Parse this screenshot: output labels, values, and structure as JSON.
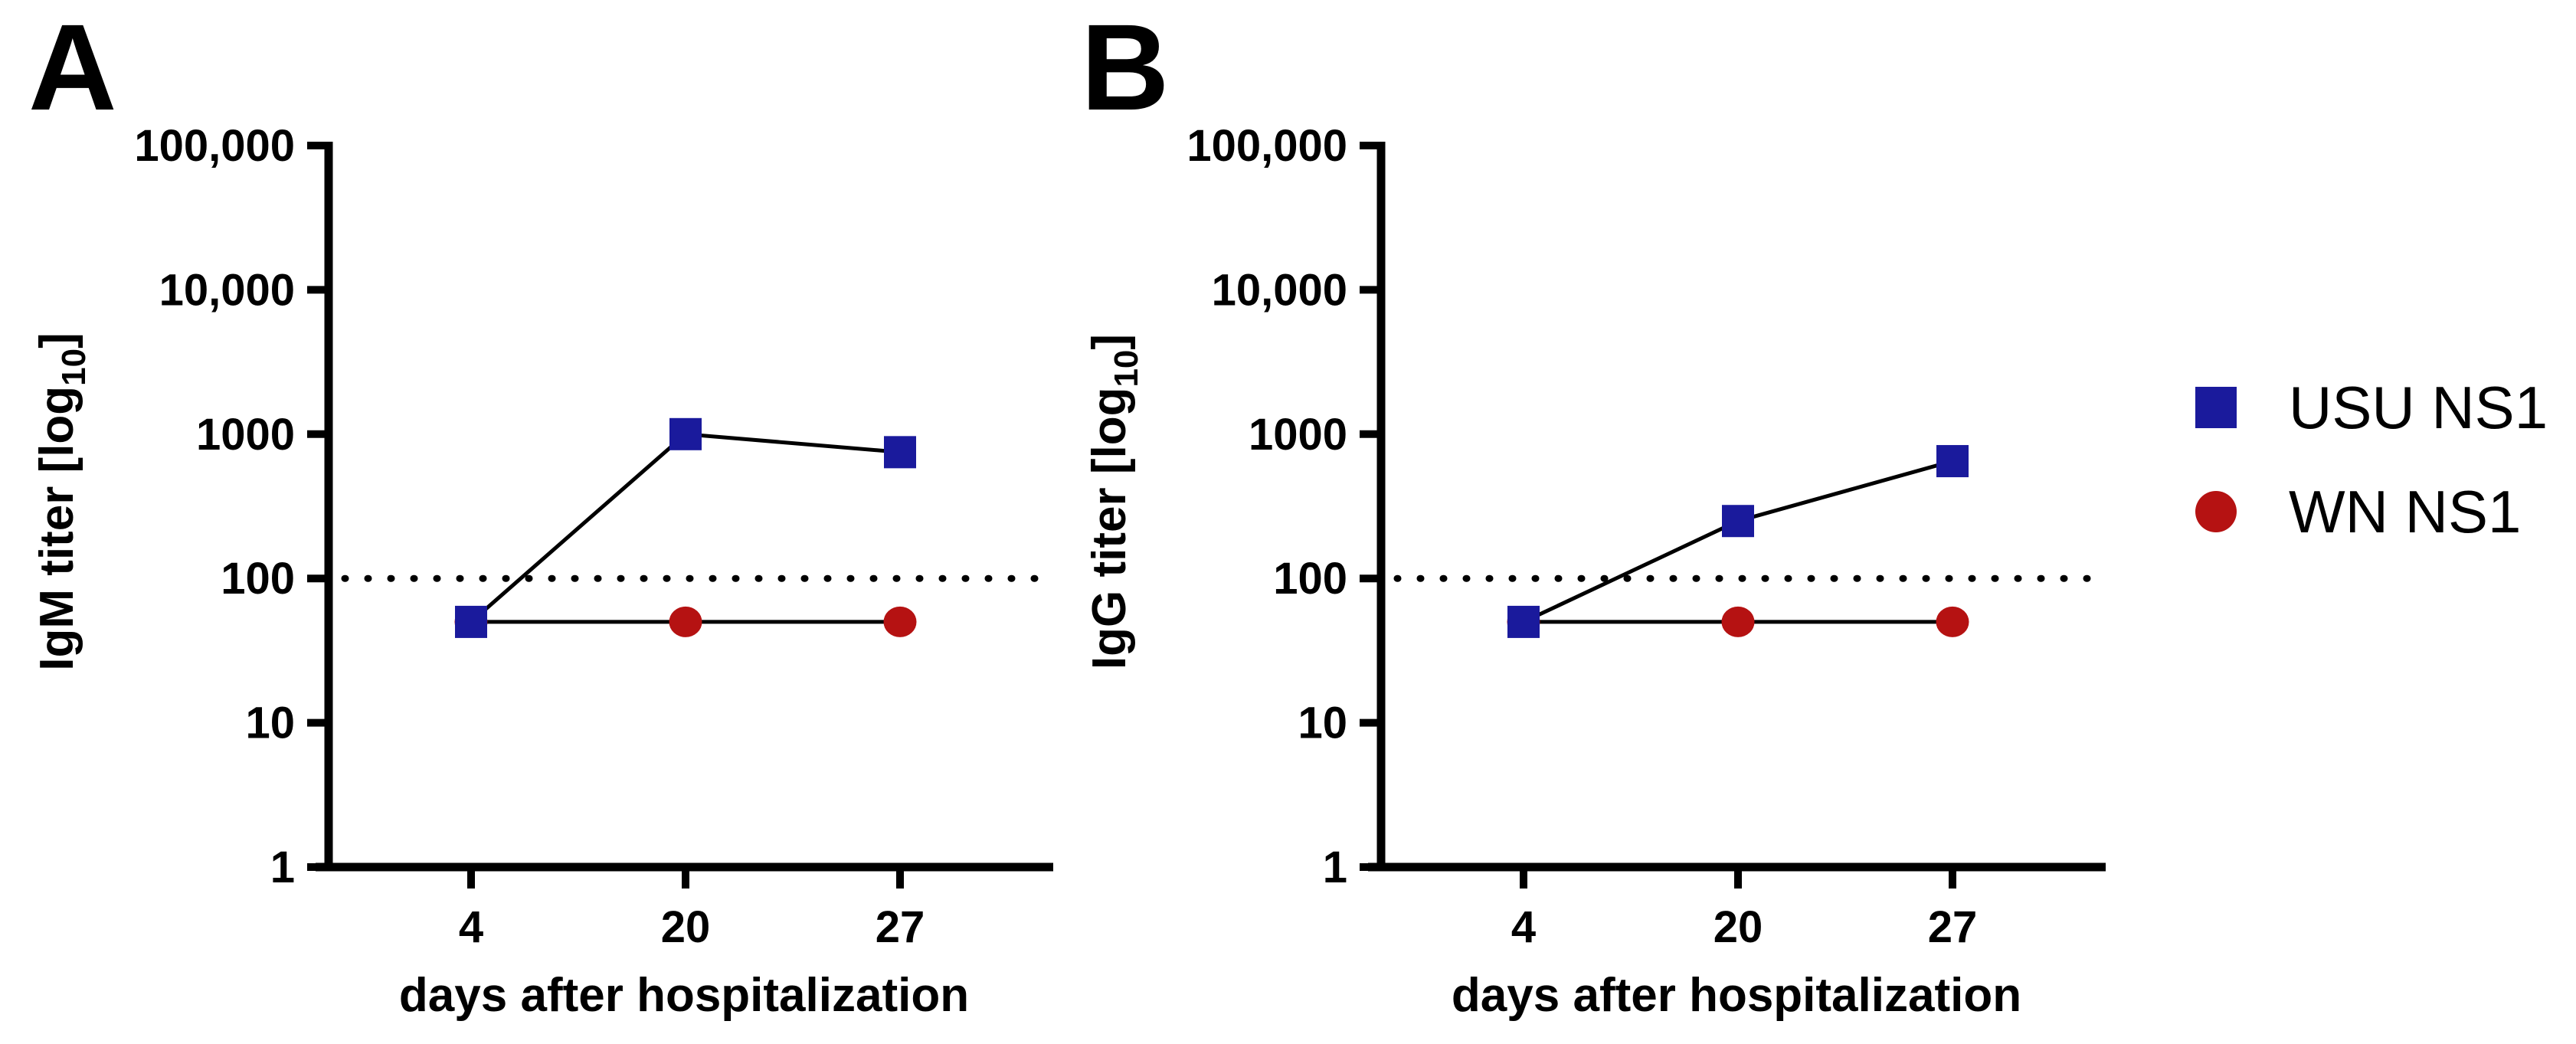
{
  "figure": {
    "background": "#ffffff",
    "axis_color": "#000000",
    "line_color": "#000000"
  },
  "chart_data": [
    {
      "panel_label": "A",
      "type": "line",
      "title": "",
      "xlabel": "days after hospitalization",
      "ylabel": "IgM titer [log10]",
      "ylabel_parts": {
        "prefix": "IgM titer [log",
        "sub": "10",
        "suffix": "]"
      },
      "x_tick_labels": [
        "4",
        "20",
        "27"
      ],
      "x_values": [
        4,
        20,
        27
      ],
      "yscale": "log10",
      "ylim": [
        1,
        100000
      ],
      "y_tick_values": [
        1,
        10,
        100,
        1000,
        10000,
        100000
      ],
      "y_tick_labels": [
        "1",
        "10",
        "100",
        "1000",
        "10,000",
        "100,000"
      ],
      "detection_limit_line": 100,
      "grid": false,
      "legend_position": "outside-right",
      "series": [
        {
          "name": "USU NS1",
          "marker": "square",
          "color": "#1a1a9c",
          "values": [
            50,
            1000,
            750
          ]
        },
        {
          "name": "WN NS1",
          "marker": "circle",
          "color": "#b51212",
          "values": [
            50,
            50,
            50
          ]
        }
      ]
    },
    {
      "panel_label": "B",
      "type": "line",
      "title": "",
      "xlabel": "days after hospitalization",
      "ylabel": "IgG titer [log10]",
      "ylabel_parts": {
        "prefix": "IgG titer [log",
        "sub": "10",
        "suffix": "]"
      },
      "x_tick_labels": [
        "4",
        "20",
        "27"
      ],
      "x_values": [
        4,
        20,
        27
      ],
      "yscale": "log10",
      "ylim": [
        1,
        100000
      ],
      "y_tick_values": [
        1,
        10,
        100,
        1000,
        10000,
        100000
      ],
      "y_tick_labels": [
        "1",
        "10",
        "100",
        "1000",
        "10,000",
        "100,000"
      ],
      "detection_limit_line": 100,
      "grid": false,
      "legend_position": "outside-right",
      "series": [
        {
          "name": "USU NS1",
          "marker": "square",
          "color": "#1a1a9c",
          "values": [
            50,
            250,
            650
          ]
        },
        {
          "name": "WN NS1",
          "marker": "circle",
          "color": "#b51212",
          "values": [
            50,
            50,
            50
          ]
        }
      ]
    }
  ],
  "legend": {
    "items": [
      {
        "label": "USU NS1",
        "marker": "square",
        "color": "#1a1a9c"
      },
      {
        "label": "WN NS1",
        "marker": "circle",
        "color": "#b51212"
      }
    ]
  }
}
